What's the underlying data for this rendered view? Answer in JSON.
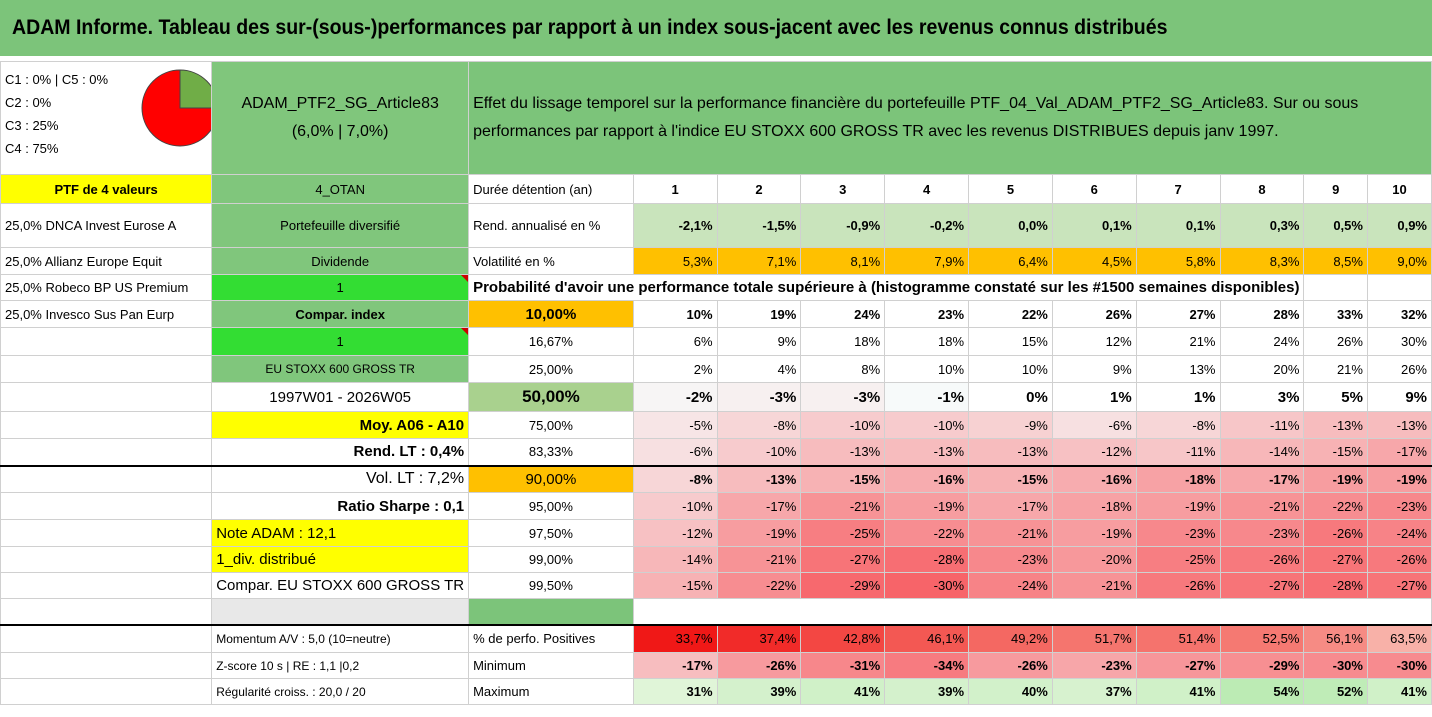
{
  "title": "ADAM Informe. Tableau des sur-(sous-)performances par rapport à un index sous-jacent avec les revenus connus distribués",
  "categories": [
    "C1 : 0% | C5 : 0%",
    "C2 : 0%",
    "C3 : 25%",
    "C4 : 75%"
  ],
  "pie": {
    "slices": [
      {
        "name": "C3",
        "value": 25,
        "color": "#70ad47"
      },
      {
        "name": "C4",
        "value": 75,
        "color": "#ff0000"
      }
    ]
  },
  "portfolio": {
    "name": "ADAM_PTF2_SG_Article83",
    "weights": "(6,0% | 7,0%)",
    "description_line1": "Effet du lissage temporel sur la performance financière du portefeuille PTF_04_Val_ADAM_PTF2_SG_Article83. Sur ou sous",
    "description_line2": "performances par rapport à l'indice EU STOXX 600 GROSS TR avec les revenus DISTRIBUES depuis janv 1997.",
    "ptf_label": "PTF de 4 valeurs",
    "code": "4_OTAN",
    "duration_label": "Durée détention (an)",
    "durations": [
      "1",
      "2",
      "3",
      "4",
      "5",
      "6",
      "7",
      "8",
      "9",
      "10"
    ]
  },
  "holdings": [
    "25,0% DNCA Invest Eurose A",
    "25,0% Allianz Europe Equit",
    "25,0% Robeco BP US Premium",
    "25,0% Invesco Sus Pan Eurp"
  ],
  "info": {
    "diversified": "Portefeuille diversifié",
    "dividend": "Dividende",
    "one_a": "1",
    "compar_index": "Compar. index",
    "one_b": "1",
    "index_name": "EU STOXX 600 GROSS TR",
    "period": "1997W01 - 2026W05",
    "avg": "Moy. A06 - A10",
    "rend_lt": "Rend. LT : 0,4%",
    "vol_lt": "Vol. LT : 7,2%",
    "sharpe": "Ratio Sharpe : 0,1",
    "note": "Note ADAM : 12,1",
    "div": "1_div. distribué",
    "compar": "Compar. EU STOXX 600 GROSS TR"
  },
  "rend_row": {
    "label": "Rend. annualisé en %",
    "values": [
      "-2,1%",
      "-1,5%",
      "-0,9%",
      "-0,2%",
      "0,0%",
      "0,1%",
      "0,1%",
      "0,3%",
      "0,5%",
      "0,9%"
    ]
  },
  "vol_row": {
    "label": "Volatilité en %",
    "values": [
      "5,3%",
      "7,1%",
      "8,1%",
      "7,9%",
      "6,4%",
      "4,5%",
      "5,8%",
      "8,3%",
      "8,5%",
      "9,0%"
    ]
  },
  "prob_title": "Probabilité d'avoir une performance totale supérieure à (histogramme constaté sur les #1500 semaines disponibles)",
  "prob_rows": [
    {
      "threshold": "10,00%",
      "values": [
        "10%",
        "19%",
        "24%",
        "23%",
        "22%",
        "26%",
        "27%",
        "28%",
        "33%",
        "32%"
      ]
    },
    {
      "threshold": "16,67%",
      "values": [
        "6%",
        "9%",
        "18%",
        "18%",
        "15%",
        "12%",
        "21%",
        "24%",
        "26%",
        "30%"
      ]
    },
    {
      "threshold": "25,00%",
      "values": [
        "2%",
        "4%",
        "8%",
        "10%",
        "10%",
        "9%",
        "13%",
        "20%",
        "21%",
        "26%"
      ]
    },
    {
      "threshold": "50,00%",
      "values": [
        "-2%",
        "-3%",
        "-3%",
        "-1%",
        "0%",
        "1%",
        "1%",
        "3%",
        "5%",
        "9%"
      ]
    },
    {
      "threshold": "75,00%",
      "values": [
        "-5%",
        "-8%",
        "-10%",
        "-10%",
        "-9%",
        "-6%",
        "-8%",
        "-11%",
        "-13%",
        "-13%"
      ]
    },
    {
      "threshold": "83,33%",
      "values": [
        "-6%",
        "-10%",
        "-13%",
        "-13%",
        "-13%",
        "-12%",
        "-11%",
        "-14%",
        "-15%",
        "-17%"
      ]
    },
    {
      "threshold": "90,00%",
      "values": [
        "-8%",
        "-13%",
        "-15%",
        "-16%",
        "-15%",
        "-16%",
        "-18%",
        "-17%",
        "-19%",
        "-19%"
      ]
    },
    {
      "threshold": "95,00%",
      "values": [
        "-10%",
        "-17%",
        "-21%",
        "-19%",
        "-17%",
        "-18%",
        "-19%",
        "-21%",
        "-22%",
        "-23%"
      ]
    },
    {
      "threshold": "97,50%",
      "values": [
        "-12%",
        "-19%",
        "-25%",
        "-22%",
        "-21%",
        "-19%",
        "-23%",
        "-23%",
        "-26%",
        "-24%"
      ]
    },
    {
      "threshold": "99,00%",
      "values": [
        "-14%",
        "-21%",
        "-27%",
        "-28%",
        "-23%",
        "-20%",
        "-25%",
        "-26%",
        "-27%",
        "-26%"
      ]
    },
    {
      "threshold": "99,50%",
      "values": [
        "-15%",
        "-22%",
        "-29%",
        "-30%",
        "-24%",
        "-21%",
        "-26%",
        "-27%",
        "-28%",
        "-27%"
      ]
    }
  ],
  "bottom": {
    "momentum": "Momentum A/V : 5,0 (10=neutre)",
    "zscore": "Z-score 10 s | RE : 1,1 |0,2",
    "regularity": "Régularité croiss. : 20,0 / 20",
    "pos_row": {
      "label": "% de perfo. Positives",
      "values": [
        "33,7%",
        "37,4%",
        "42,8%",
        "46,1%",
        "49,2%",
        "51,7%",
        "51,4%",
        "52,5%",
        "56,1%",
        "63,5%"
      ]
    },
    "min_row": {
      "label": "Minimum",
      "values": [
        "-17%",
        "-26%",
        "-31%",
        "-34%",
        "-26%",
        "-23%",
        "-27%",
        "-29%",
        "-30%",
        "-30%"
      ]
    },
    "max_row": {
      "label": "Maximum",
      "values": [
        "31%",
        "39%",
        "41%",
        "39%",
        "40%",
        "37%",
        "41%",
        "54%",
        "52%",
        "41%"
      ]
    }
  },
  "colors": {
    "title_bg": "#7cc47a",
    "yellow": "#ffff00",
    "orange": "#ffc000",
    "bright_green": "#33dd33",
    "red_text": "#e01010"
  }
}
